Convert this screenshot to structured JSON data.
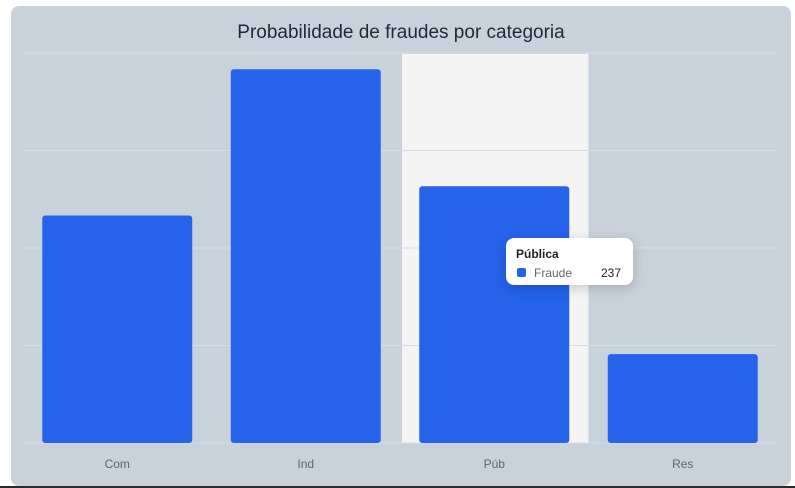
{
  "chart_data": {
    "type": "bar",
    "title": "Probabilidade de fraudes por categoria",
    "categories": [
      "Com",
      "Ind",
      "Púb",
      "Res"
    ],
    "series": [
      {
        "name": "Fraude",
        "values": [
          210,
          345,
          237,
          82
        ]
      }
    ],
    "ylim": [
      0,
      360
    ],
    "grid": true,
    "highlighted_category": "Púb",
    "colors": {
      "bar": "#2563eb",
      "highlight_band": "#f4f4f5",
      "grid": "#d6dde6",
      "card": "#c9d1db"
    }
  },
  "tooltip": {
    "title": "Pública",
    "series_name": "Fraude",
    "value": "237"
  }
}
